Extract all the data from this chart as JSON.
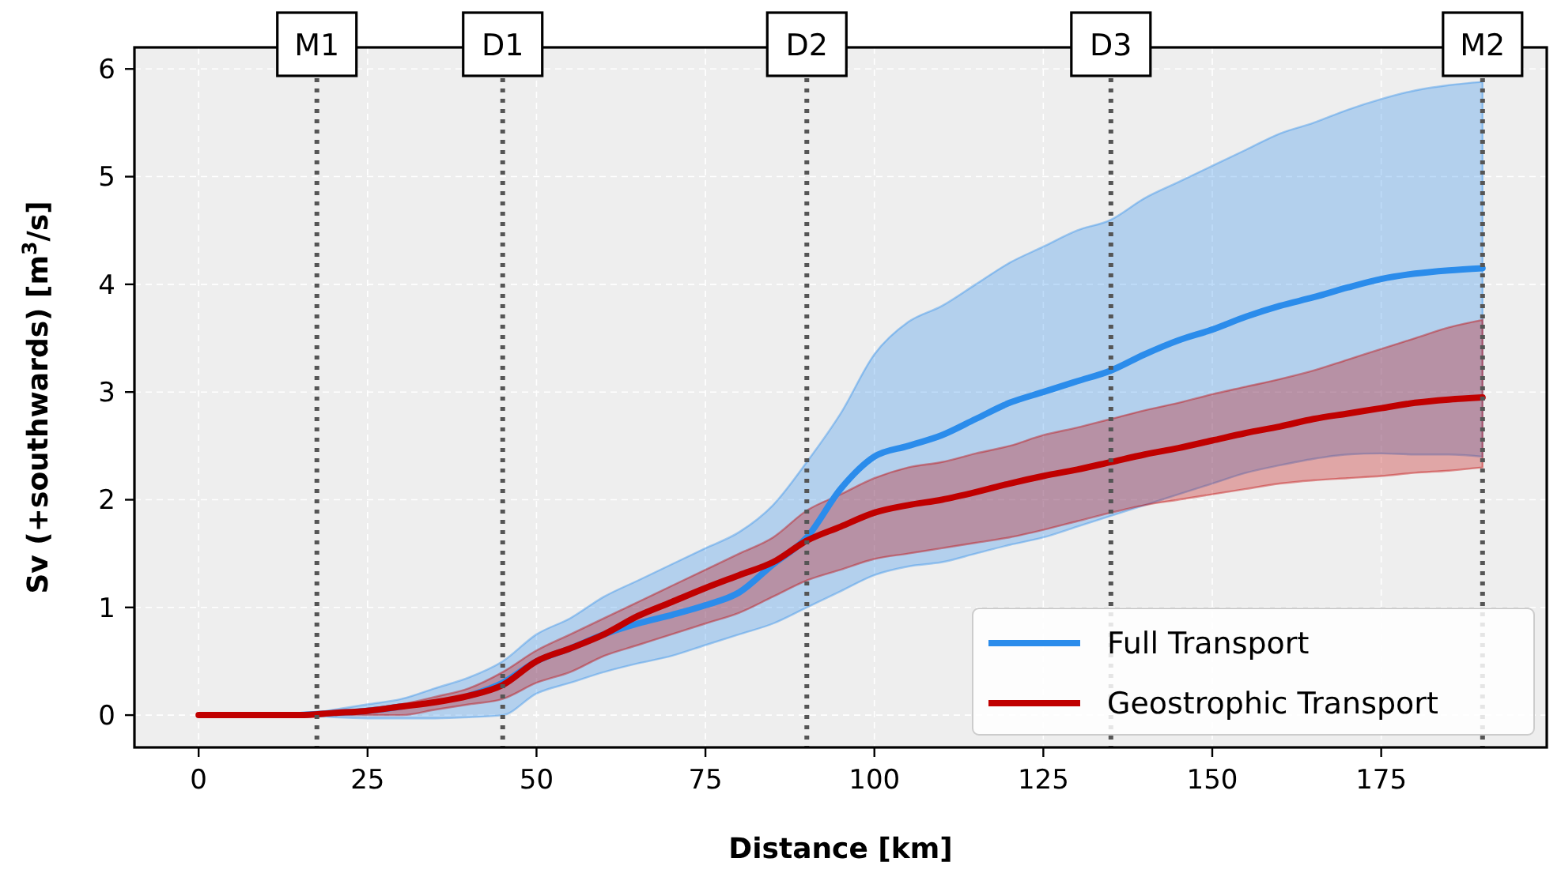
{
  "chart_data": {
    "type": "line",
    "xlabel": "Distance [km]",
    "ylabel": "Sv (+southwards) [m$^{3}$/s]",
    "x": [
      0,
      5,
      10,
      15,
      20,
      25,
      30,
      35,
      40,
      45,
      50,
      55,
      60,
      65,
      70,
      75,
      80,
      85,
      90,
      95,
      100,
      105,
      110,
      115,
      120,
      125,
      130,
      135,
      140,
      145,
      150,
      155,
      160,
      165,
      170,
      175,
      180,
      185,
      190
    ],
    "series": [
      {
        "name": "Full Transport",
        "color": "#2b8ceb",
        "values": [
          null,
          null,
          null,
          0,
          0.02,
          0.04,
          0.08,
          null,
          0.18,
          0.3,
          0.5,
          0.62,
          0.75,
          0.85,
          0.93,
          1.02,
          1.14,
          1.4,
          1.65,
          2.1,
          2.4,
          2.5,
          2.6,
          2.75,
          2.9,
          3.0,
          3.1,
          3.2,
          3.35,
          3.48,
          3.58,
          3.7,
          3.8,
          3.88,
          3.97,
          4.05,
          4.1,
          4.13,
          4.15
        ],
        "lower": [
          0,
          0,
          0,
          0,
          -0.02,
          -0.03,
          -0.03,
          -0.03,
          -0.02,
          0,
          0.2,
          0.3,
          0.4,
          0.48,
          0.55,
          0.65,
          0.75,
          0.85,
          1.0,
          1.15,
          1.3,
          1.38,
          1.42,
          1.5,
          1.58,
          1.65,
          1.75,
          1.85,
          1.95,
          2.05,
          2.15,
          2.25,
          2.32,
          2.38,
          2.42,
          2.43,
          2.42,
          2.42,
          2.4
        ],
        "upper": [
          0,
          0,
          0,
          0,
          0.05,
          0.1,
          0.15,
          0.25,
          0.35,
          0.5,
          0.75,
          0.9,
          1.1,
          1.25,
          1.4,
          1.55,
          1.7,
          1.95,
          2.35,
          2.8,
          3.35,
          3.65,
          3.8,
          4.0,
          4.2,
          4.35,
          4.5,
          4.6,
          4.8,
          4.95,
          5.1,
          5.25,
          5.4,
          5.5,
          5.62,
          5.72,
          5.8,
          5.85,
          5.88
        ]
      },
      {
        "name": "Geostrophic Transport",
        "color": "#c00000",
        "values": [
          0,
          0,
          0,
          0,
          0.02,
          0.04,
          0.08,
          0.12,
          0.18,
          0.28,
          0.5,
          0.62,
          0.75,
          0.92,
          1.05,
          1.18,
          1.3,
          1.42,
          1.62,
          1.75,
          1.88,
          1.95,
          2.0,
          2.07,
          2.15,
          2.22,
          2.28,
          2.35,
          2.42,
          2.48,
          2.55,
          2.62,
          2.68,
          2.75,
          2.8,
          2.85,
          2.9,
          2.93,
          2.95
        ],
        "lower": [
          0,
          0,
          0,
          0,
          0,
          0,
          0,
          0.05,
          0.1,
          0.15,
          0.3,
          0.4,
          0.55,
          0.65,
          0.75,
          0.85,
          0.95,
          1.1,
          1.25,
          1.35,
          1.45,
          1.5,
          1.55,
          1.6,
          1.65,
          1.72,
          1.8,
          1.88,
          1.95,
          2.0,
          2.05,
          2.1,
          2.15,
          2.18,
          2.2,
          2.22,
          2.25,
          2.27,
          2.3
        ],
        "upper": [
          0,
          0,
          0,
          0,
          0.03,
          0.06,
          0.1,
          0.17,
          0.25,
          0.4,
          0.6,
          0.75,
          0.9,
          1.05,
          1.2,
          1.35,
          1.5,
          1.65,
          1.9,
          2.05,
          2.2,
          2.3,
          2.35,
          2.43,
          2.5,
          2.6,
          2.67,
          2.75,
          2.83,
          2.9,
          2.98,
          3.05,
          3.12,
          3.2,
          3.3,
          3.4,
          3.5,
          3.6,
          3.67
        ]
      }
    ],
    "xlim": [
      -9.5,
      199.5
    ],
    "xticks": [
      0,
      25,
      50,
      75,
      100,
      125,
      150,
      175
    ],
    "ylim": [
      -0.3,
      6.2
    ],
    "yticks": [
      0,
      1,
      2,
      3,
      4,
      5,
      6
    ],
    "ref_lines": [
      {
        "axis": "x",
        "value": 17.5,
        "label": "M1",
        "color": "#555555",
        "line_style": "dotted"
      },
      {
        "axis": "x",
        "value": 45,
        "label": "D1",
        "color": "#555555",
        "line_style": "dotted"
      },
      {
        "axis": "x",
        "value": 90,
        "label": "D2",
        "color": "#555555",
        "line_style": "dotted"
      },
      {
        "axis": "x",
        "value": 135,
        "label": "D3",
        "color": "#555555",
        "line_style": "dotted"
      },
      {
        "axis": "x",
        "value": 190,
        "label": "M2",
        "color": "#555555",
        "line_style": "dotted"
      }
    ],
    "grid": true,
    "legend": "bottom right",
    "line_style": "solid",
    "marker": "none"
  }
}
